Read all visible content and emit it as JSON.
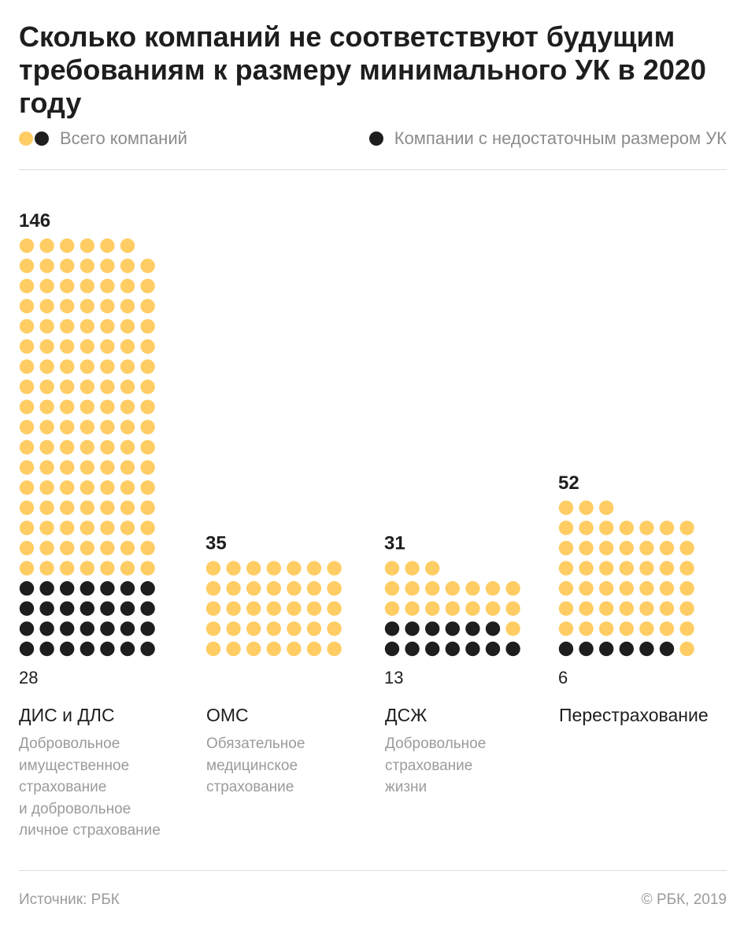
{
  "title": "Сколько компаний не соответствуют будущим требованиям к размеру минимального УК в 2020 году",
  "legend": {
    "total_label": "Всего компаний",
    "short_label": "Компании с недостаточным размером УК"
  },
  "colors": {
    "total": "#ffcd63",
    "short": "#1e1e1e"
  },
  "chart_data": {
    "type": "unit-dot",
    "title": "Сколько компаний не соответствуют будущим требованиям к размеру минимального УК в 2020 году",
    "legend_position": "top",
    "series": [
      {
        "name": "Всего компаний",
        "values": [
          146,
          35,
          31,
          52
        ]
      },
      {
        "name": "Компании с недостаточным размером УК",
        "values": [
          28,
          0,
          13,
          6
        ]
      }
    ],
    "categories": [
      {
        "name": "ДИС и ДЛС",
        "description": [
          "Добровольное",
          "имущественное",
          "страхование",
          "и добровольное",
          "личное страхование"
        ],
        "total": 146,
        "short": 28,
        "total_label": "146",
        "short_label": "28"
      },
      {
        "name": "ОМС",
        "description": [
          "Обязательное",
          "медицинское",
          "страхование"
        ],
        "total": 35,
        "short": 0,
        "total_label": "35",
        "short_label": ""
      },
      {
        "name": "ДСЖ",
        "description": [
          "Добровольное",
          "страхование",
          "жизни"
        ],
        "total": 31,
        "short": 13,
        "total_label": "31",
        "short_label": "13"
      },
      {
        "name": "Перестрахование",
        "description": [],
        "total": 52,
        "short": 6,
        "total_label": "52",
        "short_label": "6"
      }
    ]
  },
  "footer": {
    "source": "Источник: РБК",
    "copyright": "© РБК, 2019"
  }
}
